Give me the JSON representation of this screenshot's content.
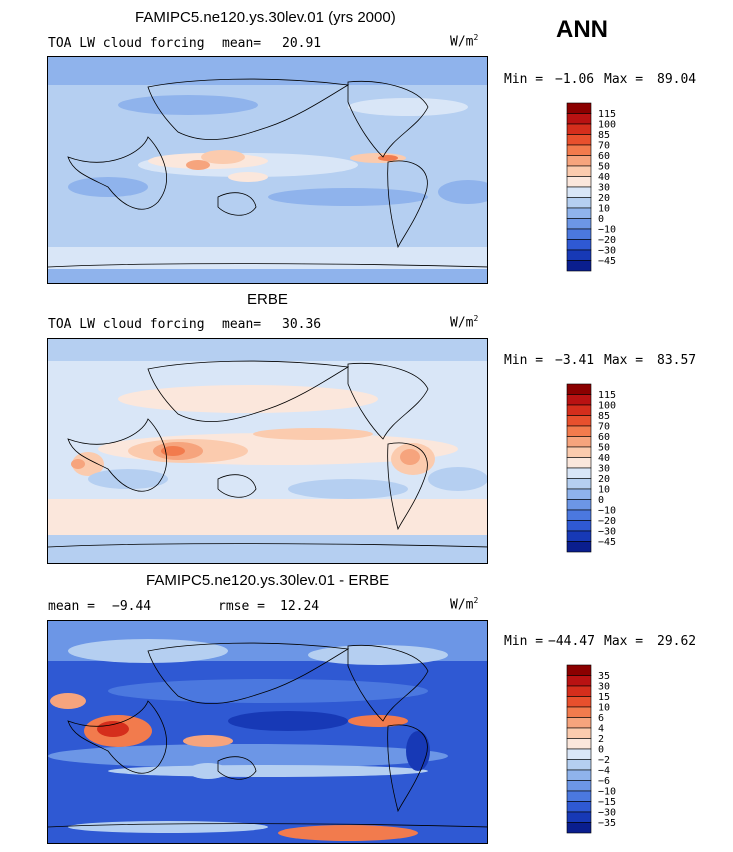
{
  "season": "ANN",
  "units_base": "W/m",
  "units_exp": "2",
  "panels": [
    {
      "title": "FAMIPC5.ne120.ys.30lev.01 (yrs 2000)",
      "left_label": "TOA LW cloud forcing",
      "stat_label": "mean=",
      "stat_value": "20.91",
      "min_label": "Min =",
      "min_value": "−1.06",
      "max_label": "Max =",
      "max_value": "89.04",
      "levels": [
        "115",
        "100",
        "85",
        "70",
        "60",
        "50",
        "40",
        "30",
        "20",
        "10",
        "0",
        "−10",
        "−20",
        "−30",
        "−45"
      ],
      "colors": [
        "#8b0000",
        "#b91212",
        "#d52e1c",
        "#e8502d",
        "#f27b4d",
        "#f6a47d",
        "#fbcbae",
        "#fbe7dc",
        "#d9e6f7",
        "#b5cff1",
        "#8fb3ec",
        "#6c96e6",
        "#4b78df",
        "#2f59d3",
        "#1739b6",
        "#0a1e8e"
      ]
    },
    {
      "title": "ERBE",
      "left_label": "TOA LW cloud forcing",
      "stat_label": "mean=",
      "stat_value": "30.36",
      "min_label": "Min =",
      "min_value": "−3.41",
      "max_label": "Max =",
      "max_value": "83.57",
      "levels": [
        "115",
        "100",
        "85",
        "70",
        "60",
        "50",
        "40",
        "30",
        "20",
        "10",
        "0",
        "−10",
        "−20",
        "−30",
        "−45"
      ],
      "colors": [
        "#8b0000",
        "#b91212",
        "#d52e1c",
        "#e8502d",
        "#f27b4d",
        "#f6a47d",
        "#fbcbae",
        "#fbe7dc",
        "#d9e6f7",
        "#b5cff1",
        "#8fb3ec",
        "#6c96e6",
        "#4b78df",
        "#2f59d3",
        "#1739b6",
        "#0a1e8e"
      ]
    },
    {
      "title": "FAMIPC5.ne120.ys.30lev.01 - ERBE",
      "left_label": "mean =",
      "left_value": "−9.44",
      "stat_label": "rmse =",
      "stat_value": "12.24",
      "min_label": "Min =",
      "min_value": "−44.47",
      "max_label": "Max =",
      "max_value": "29.62",
      "levels": [
        "35",
        "30",
        "15",
        "10",
        "6",
        "4",
        "2",
        "0",
        "−2",
        "−4",
        "−6",
        "−10",
        "−15",
        "−30",
        "−35"
      ],
      "colors": [
        "#8b0000",
        "#b91212",
        "#d52e1c",
        "#e8502d",
        "#f27b4d",
        "#f6a47d",
        "#fbcbae",
        "#fbe7dc",
        "#d9e6f7",
        "#b5cff1",
        "#8fb3ec",
        "#6c96e6",
        "#4b78df",
        "#2f59d3",
        "#1739b6",
        "#0a1e8e"
      ]
    }
  ],
  "chart_data": {
    "type": "heatmap",
    "title": "TOA LW cloud forcing (ANN)",
    "units": "W/m2",
    "maps": [
      {
        "name": "FAMIPC5.ne120.ys.30lev.01 (yrs 2000)",
        "mean": 20.91,
        "min": -1.06,
        "max": 89.04
      },
      {
        "name": "ERBE",
        "mean": 30.36,
        "min": -3.41,
        "max": 83.57
      },
      {
        "name": "FAMIPC5.ne120.ys.30lev.01 - ERBE",
        "mean": -9.44,
        "rmse": 12.24,
        "min": -44.47,
        "max": 29.62
      }
    ]
  }
}
